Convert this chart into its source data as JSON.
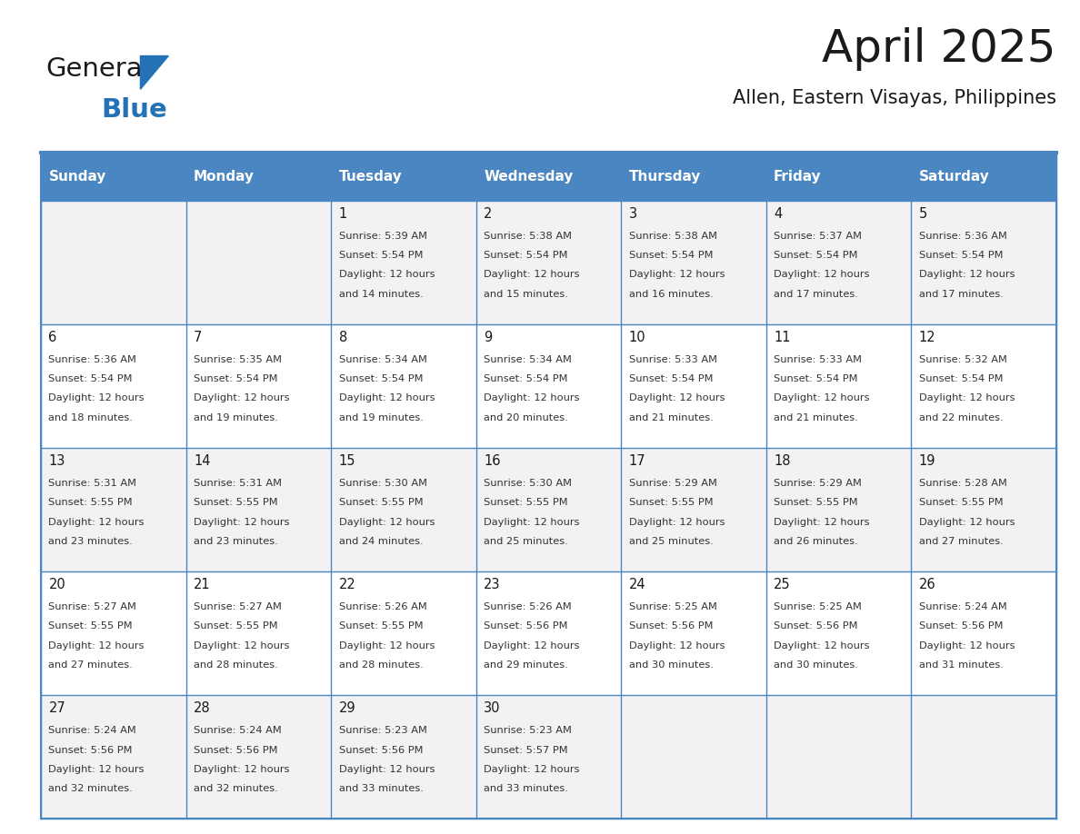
{
  "title": "April 2025",
  "subtitle": "Allen, Eastern Visayas, Philippines",
  "header_bg_color": "#4A86C1",
  "header_text_color": "#FFFFFF",
  "weekdays": [
    "Sunday",
    "Monday",
    "Tuesday",
    "Wednesday",
    "Thursday",
    "Friday",
    "Saturday"
  ],
  "cell_bg_even": "#F2F2F2",
  "cell_bg_odd": "#FFFFFF",
  "title_color": "#1a1a1a",
  "subtitle_color": "#1a1a1a",
  "border_color": "#4A86C1",
  "day_number_color": "#1a1a1a",
  "day_text_color": "#333333",
  "calendar_data": [
    [
      {
        "day": "",
        "sunrise": "",
        "sunset": "",
        "daylight": ""
      },
      {
        "day": "",
        "sunrise": "",
        "sunset": "",
        "daylight": ""
      },
      {
        "day": "1",
        "sunrise": "5:39 AM",
        "sunset": "5:54 PM",
        "daylight": "14 minutes."
      },
      {
        "day": "2",
        "sunrise": "5:38 AM",
        "sunset": "5:54 PM",
        "daylight": "15 minutes."
      },
      {
        "day": "3",
        "sunrise": "5:38 AM",
        "sunset": "5:54 PM",
        "daylight": "16 minutes."
      },
      {
        "day": "4",
        "sunrise": "5:37 AM",
        "sunset": "5:54 PM",
        "daylight": "17 minutes."
      },
      {
        "day": "5",
        "sunrise": "5:36 AM",
        "sunset": "5:54 PM",
        "daylight": "17 minutes."
      }
    ],
    [
      {
        "day": "6",
        "sunrise": "5:36 AM",
        "sunset": "5:54 PM",
        "daylight": "18 minutes."
      },
      {
        "day": "7",
        "sunrise": "5:35 AM",
        "sunset": "5:54 PM",
        "daylight": "19 minutes."
      },
      {
        "day": "8",
        "sunrise": "5:34 AM",
        "sunset": "5:54 PM",
        "daylight": "19 minutes."
      },
      {
        "day": "9",
        "sunrise": "5:34 AM",
        "sunset": "5:54 PM",
        "daylight": "20 minutes."
      },
      {
        "day": "10",
        "sunrise": "5:33 AM",
        "sunset": "5:54 PM",
        "daylight": "21 minutes."
      },
      {
        "day": "11",
        "sunrise": "5:33 AM",
        "sunset": "5:54 PM",
        "daylight": "21 minutes."
      },
      {
        "day": "12",
        "sunrise": "5:32 AM",
        "sunset": "5:54 PM",
        "daylight": "22 minutes."
      }
    ],
    [
      {
        "day": "13",
        "sunrise": "5:31 AM",
        "sunset": "5:55 PM",
        "daylight": "23 minutes."
      },
      {
        "day": "14",
        "sunrise": "5:31 AM",
        "sunset": "5:55 PM",
        "daylight": "23 minutes."
      },
      {
        "day": "15",
        "sunrise": "5:30 AM",
        "sunset": "5:55 PM",
        "daylight": "24 minutes."
      },
      {
        "day": "16",
        "sunrise": "5:30 AM",
        "sunset": "5:55 PM",
        "daylight": "25 minutes."
      },
      {
        "day": "17",
        "sunrise": "5:29 AM",
        "sunset": "5:55 PM",
        "daylight": "25 minutes."
      },
      {
        "day": "18",
        "sunrise": "5:29 AM",
        "sunset": "5:55 PM",
        "daylight": "26 minutes."
      },
      {
        "day": "19",
        "sunrise": "5:28 AM",
        "sunset": "5:55 PM",
        "daylight": "27 minutes."
      }
    ],
    [
      {
        "day": "20",
        "sunrise": "5:27 AM",
        "sunset": "5:55 PM",
        "daylight": "27 minutes."
      },
      {
        "day": "21",
        "sunrise": "5:27 AM",
        "sunset": "5:55 PM",
        "daylight": "28 minutes."
      },
      {
        "day": "22",
        "sunrise": "5:26 AM",
        "sunset": "5:55 PM",
        "daylight": "28 minutes."
      },
      {
        "day": "23",
        "sunrise": "5:26 AM",
        "sunset": "5:56 PM",
        "daylight": "29 minutes."
      },
      {
        "day": "24",
        "sunrise": "5:25 AM",
        "sunset": "5:56 PM",
        "daylight": "30 minutes."
      },
      {
        "day": "25",
        "sunrise": "5:25 AM",
        "sunset": "5:56 PM",
        "daylight": "30 minutes."
      },
      {
        "day": "26",
        "sunrise": "5:24 AM",
        "sunset": "5:56 PM",
        "daylight": "31 minutes."
      }
    ],
    [
      {
        "day": "27",
        "sunrise": "5:24 AM",
        "sunset": "5:56 PM",
        "daylight": "32 minutes."
      },
      {
        "day": "28",
        "sunrise": "5:24 AM",
        "sunset": "5:56 PM",
        "daylight": "32 minutes."
      },
      {
        "day": "29",
        "sunrise": "5:23 AM",
        "sunset": "5:56 PM",
        "daylight": "33 minutes."
      },
      {
        "day": "30",
        "sunrise": "5:23 AM",
        "sunset": "5:57 PM",
        "daylight": "33 minutes."
      },
      {
        "day": "",
        "sunrise": "",
        "sunset": "",
        "daylight": ""
      },
      {
        "day": "",
        "sunrise": "",
        "sunset": "",
        "daylight": ""
      },
      {
        "day": "",
        "sunrise": "",
        "sunset": "",
        "daylight": ""
      }
    ]
  ]
}
